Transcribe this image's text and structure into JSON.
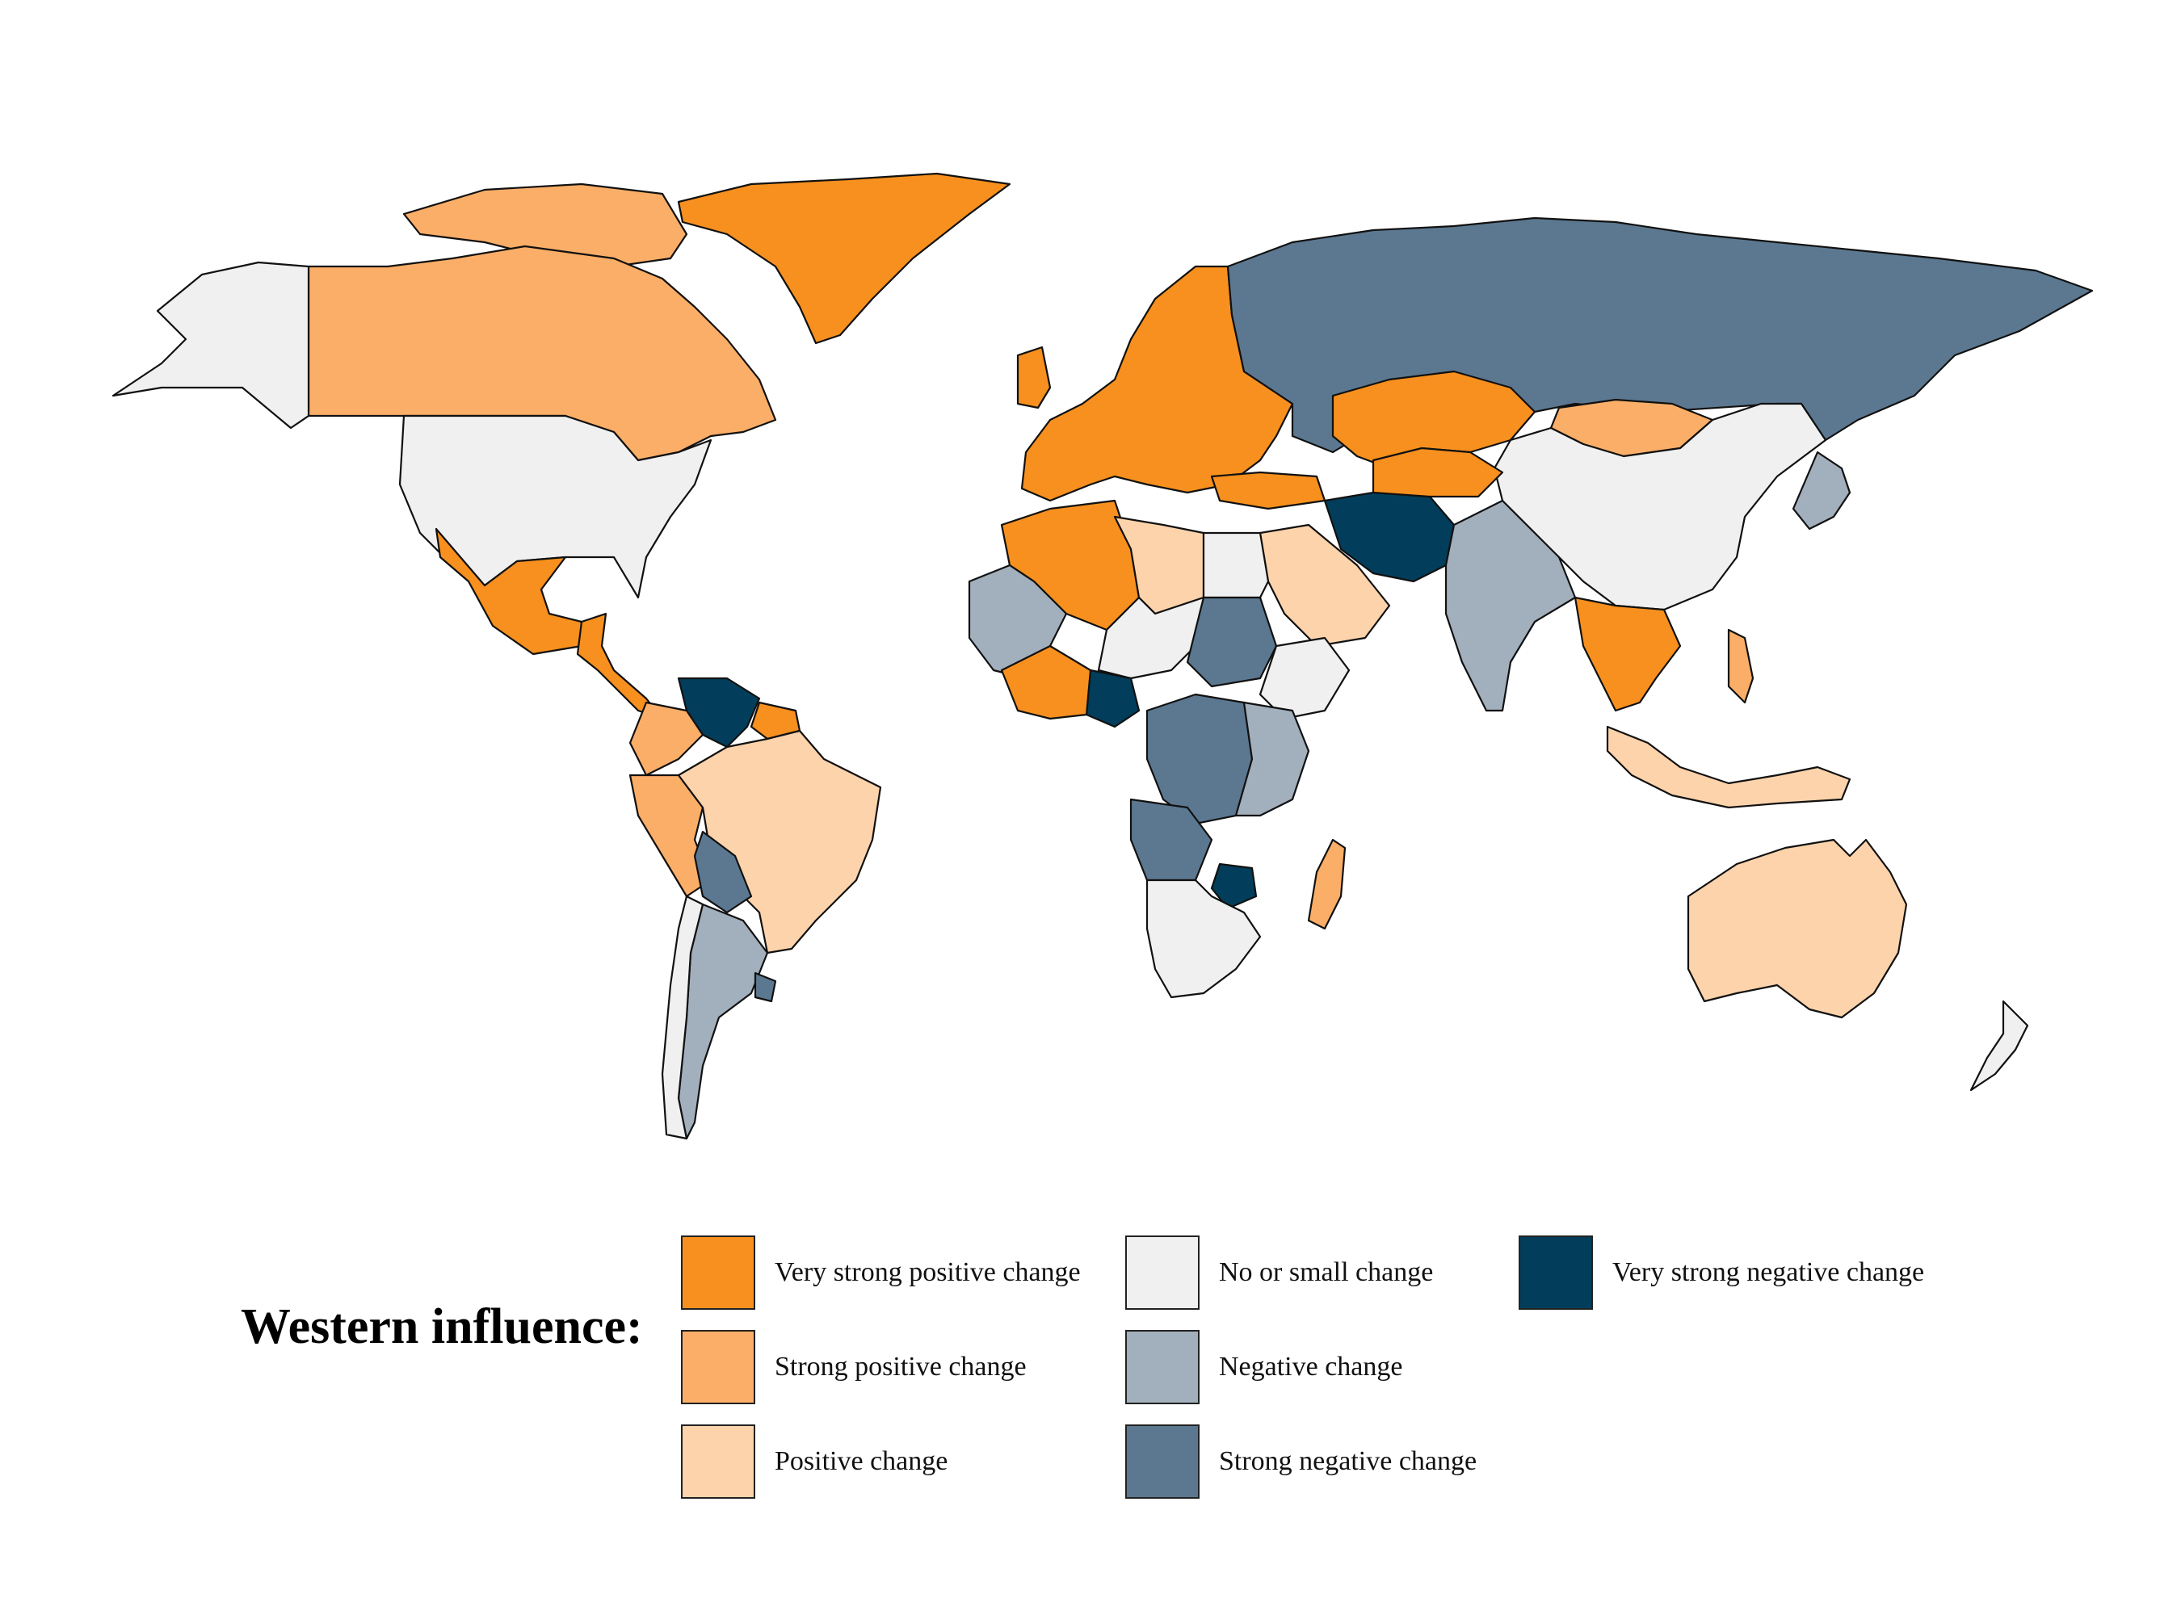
{
  "legend": {
    "title": "Western influence:",
    "categories": [
      {
        "key": "vsp",
        "label": "Very strong positive change",
        "color": "#f7901e"
      },
      {
        "key": "sp",
        "label": "Strong positive change",
        "color": "#fbae68"
      },
      {
        "key": "p",
        "label": "Positive change",
        "color": "#fdd3ab"
      },
      {
        "key": "n",
        "label": "No or small change",
        "color": "#f0f0f0"
      },
      {
        "key": "neg",
        "label": "Negative change",
        "color": "#a2afbc"
      },
      {
        "key": "sn",
        "label": "Strong negative change",
        "color": "#5c7890"
      },
      {
        "key": "vsn",
        "label": "Very strong negative change",
        "color": "#023e5b"
      }
    ]
  },
  "regions": [
    {
      "name": "Greenland",
      "category": "vsp"
    },
    {
      "name": "Canada",
      "category": "sp"
    },
    {
      "name": "Alaska",
      "category": "n"
    },
    {
      "name": "United States",
      "category": "n"
    },
    {
      "name": "Mexico",
      "category": "vsp"
    },
    {
      "name": "Central America",
      "category": "vsp"
    },
    {
      "name": "Venezuela",
      "category": "vsn"
    },
    {
      "name": "Colombia",
      "category": "sp"
    },
    {
      "name": "Brazil",
      "category": "p"
    },
    {
      "name": "Peru",
      "category": "sp"
    },
    {
      "name": "Bolivia",
      "category": "sn"
    },
    {
      "name": "Argentina",
      "category": "neg"
    },
    {
      "name": "Chile",
      "category": "n"
    },
    {
      "name": "Europe",
      "category": "vsp"
    },
    {
      "name": "Russia",
      "category": "sn"
    },
    {
      "name": "Kazakhstan",
      "category": "vsp"
    },
    {
      "name": "Mongolia",
      "category": "sp"
    },
    {
      "name": "China",
      "category": "n"
    },
    {
      "name": "India",
      "category": "neg"
    },
    {
      "name": "Iran",
      "category": "vsn"
    },
    {
      "name": "Saudi Arabia",
      "category": "p"
    },
    {
      "name": "Algeria",
      "category": "vsp"
    },
    {
      "name": "Libya",
      "category": "p"
    },
    {
      "name": "Egypt",
      "category": "n"
    },
    {
      "name": "Sudan",
      "category": "sn"
    },
    {
      "name": "Nigeria",
      "category": "vsn"
    },
    {
      "name": "DR Congo",
      "category": "sn"
    },
    {
      "name": "Southern Africa",
      "category": "n"
    },
    {
      "name": "Zimbabwe",
      "category": "vsn"
    },
    {
      "name": "Madagascar",
      "category": "sp"
    },
    {
      "name": "Southeast Asia",
      "category": "vsp"
    },
    {
      "name": "Indonesia",
      "category": "p"
    },
    {
      "name": "Australia",
      "category": "p"
    },
    {
      "name": "New Zealand",
      "category": "n"
    },
    {
      "name": "Japan",
      "category": "neg"
    }
  ]
}
